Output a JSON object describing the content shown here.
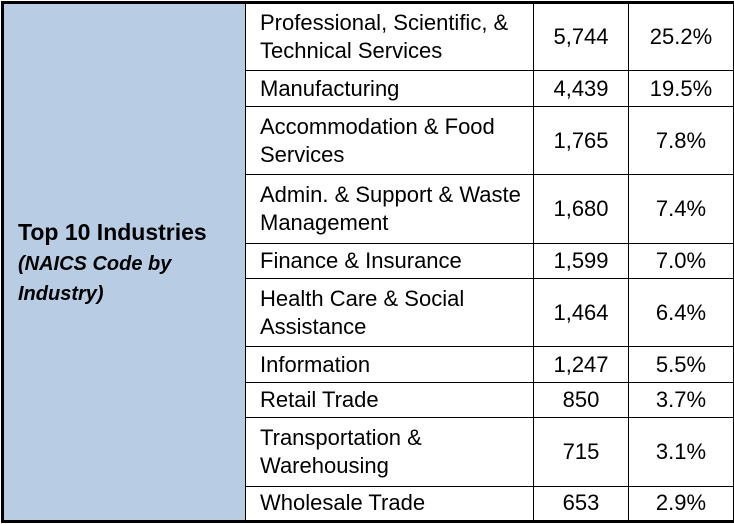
{
  "header": {
    "title": "Top 10 Industries",
    "subtitle": "(NAICS Code by Industry)"
  },
  "rows": [
    {
      "industry": "Professional, Scientific, & Technical Services",
      "count": "5,744",
      "percent": "25.2%"
    },
    {
      "industry": "Manufacturing",
      "count": "4,439",
      "percent": "19.5%"
    },
    {
      "industry": "Accommodation & Food Services",
      "count": "1,765",
      "percent": "7.8%"
    },
    {
      "industry": "Admin. & Support & Waste Management",
      "count": "1,680",
      "percent": "7.4%"
    },
    {
      "industry": "Finance & Insurance",
      "count": "1,599",
      "percent": "7.0%"
    },
    {
      "industry": "Health Care & Social Assistance",
      "count": "1,464",
      "percent": "6.4%"
    },
    {
      "industry": "Information",
      "count": "1,247",
      "percent": "5.5%"
    },
    {
      "industry": "Retail Trade",
      "count": "850",
      "percent": "3.7%"
    },
    {
      "industry": "Transportation & Warehousing",
      "count": "715",
      "percent": "3.1%"
    },
    {
      "industry": "Wholesale Trade",
      "count": "653",
      "percent": "2.9%"
    }
  ],
  "colors": {
    "header_fill": "#b8cce4",
    "border": "#000000"
  }
}
